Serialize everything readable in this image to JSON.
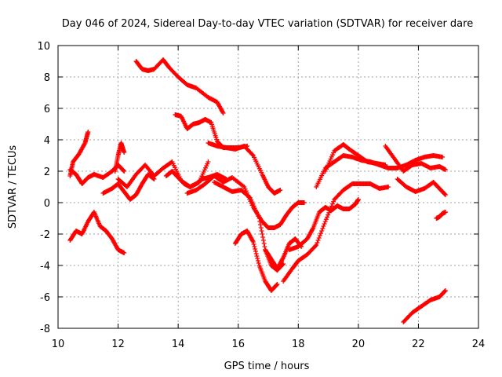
{
  "chart_data": {
    "type": "scatter",
    "title": "Day 046 of 2024, Sidereal Day-to-day VTEC variation (SDTVAR) for receiver dare",
    "xlabel": "GPS time / hours",
    "ylabel": "SDTVAR / TECUs",
    "xlim": [
      10,
      24
    ],
    "ylim": [
      -8,
      10
    ],
    "xticks": [
      10,
      12,
      14,
      16,
      18,
      20,
      22,
      24
    ],
    "yticks": [
      -8,
      -6,
      -4,
      -2,
      0,
      2,
      4,
      6,
      8,
      10
    ],
    "grid": true,
    "marker": "+",
    "color": "#ff0000",
    "series": [
      {
        "name": "track-1",
        "x": [
          10.4,
          10.5,
          10.7,
          10.9,
          11.0
        ],
        "y": [
          1.7,
          2.6,
          3.1,
          3.8,
          4.5
        ]
      },
      {
        "name": "track-2",
        "x": [
          10.4,
          10.6,
          10.8,
          11.0,
          11.2,
          11.5,
          11.8,
          12.0,
          12.2
        ],
        "y": [
          2.1,
          1.8,
          1.2,
          1.6,
          1.8,
          1.6,
          2.0,
          2.4,
          2.0
        ]
      },
      {
        "name": "track-3",
        "x": [
          10.4,
          10.6,
          10.8,
          11.0,
          11.2,
          11.4,
          11.6,
          11.8,
          12.0,
          12.2
        ],
        "y": [
          -2.4,
          -1.8,
          -2.0,
          -1.2,
          -0.6,
          -1.5,
          -1.8,
          -2.3,
          -3.0,
          -3.2
        ]
      },
      {
        "name": "track-4",
        "x": [
          11.5,
          11.8,
          12.0,
          12.2,
          12.4,
          12.6,
          12.8,
          13.0,
          13.2
        ],
        "y": [
          0.6,
          0.9,
          1.2,
          0.7,
          0.2,
          0.5,
          1.2,
          1.8,
          1.5
        ]
      },
      {
        "name": "track-5",
        "x": [
          11.9,
          12.0,
          12.1,
          12.2
        ],
        "y": [
          2.0,
          3.0,
          3.8,
          3.2
        ]
      },
      {
        "name": "track-6",
        "x": [
          12.0,
          12.3,
          12.6,
          12.9,
          13.2,
          13.5,
          13.8,
          14.1,
          14.4,
          14.7,
          15.0
        ],
        "y": [
          1.5,
          1.0,
          1.8,
          2.4,
          1.7,
          2.2,
          2.6,
          1.4,
          1.0,
          1.3,
          2.6
        ]
      },
      {
        "name": "track-7",
        "x": [
          12.6,
          12.8,
          13.0,
          13.2,
          13.5,
          13.7,
          14.0,
          14.3,
          14.6,
          15.0,
          15.3,
          15.5
        ],
        "y": [
          9.0,
          8.5,
          8.4,
          8.5,
          9.1,
          8.6,
          8.0,
          7.5,
          7.3,
          6.7,
          6.4,
          5.7
        ]
      },
      {
        "name": "track-8",
        "x": [
          13.6,
          13.8,
          14.0,
          14.2,
          14.4,
          14.6,
          14.8,
          15.0,
          15.3,
          15.6
        ],
        "y": [
          1.7,
          2.0,
          1.6,
          1.2,
          1.0,
          1.2,
          1.5,
          1.6,
          1.8,
          1.5
        ]
      },
      {
        "name": "track-9",
        "x": [
          13.9,
          14.1,
          14.3,
          14.5,
          14.7,
          14.9,
          15.1,
          15.3,
          15.5,
          15.7,
          16.0,
          16.3
        ],
        "y": [
          5.6,
          5.5,
          4.7,
          5.0,
          5.1,
          5.3,
          5.1,
          3.9,
          3.5,
          3.5,
          3.5,
          3.6
        ]
      },
      {
        "name": "track-10",
        "x": [
          14.3,
          14.6,
          14.9,
          15.2,
          15.5,
          15.8,
          16.2,
          16.5,
          16.8,
          17.0,
          17.2,
          17.4,
          17.6,
          17.8,
          18.0,
          18.2
        ],
        "y": [
          0.6,
          0.8,
          1.2,
          1.7,
          1.3,
          1.6,
          1.0,
          -0.3,
          -1.2,
          -1.6,
          -1.6,
          -1.4,
          -0.8,
          -0.3,
          0.0,
          0.0
        ]
      },
      {
        "name": "track-11",
        "x": [
          15.0,
          15.3,
          15.6,
          15.9,
          16.2,
          16.5,
          16.8,
          17.0,
          17.2,
          17.4
        ],
        "y": [
          3.8,
          3.6,
          3.5,
          3.4,
          3.6,
          3.0,
          1.8,
          1.0,
          0.6,
          0.8
        ]
      },
      {
        "name": "track-12",
        "x": [
          15.2,
          15.5,
          15.8,
          16.1,
          16.4,
          16.7,
          16.9,
          17.1,
          17.3,
          17.5
        ],
        "y": [
          1.3,
          1.0,
          0.7,
          0.8,
          0.3,
          -1.0,
          -3.0,
          -4.0,
          -4.3,
          -3.9
        ]
      },
      {
        "name": "track-13",
        "x": [
          15.9,
          16.1,
          16.3,
          16.5,
          16.7,
          16.9,
          17.1,
          17.3
        ],
        "y": [
          -2.6,
          -2.0,
          -1.8,
          -2.5,
          -4.0,
          -5.0,
          -5.6,
          -5.2
        ]
      },
      {
        "name": "track-14",
        "x": [
          16.9,
          17.1,
          17.3,
          17.5,
          17.7,
          17.9,
          18.1
        ],
        "y": [
          -3.0,
          -3.6,
          -4.2,
          -3.5,
          -2.6,
          -2.3,
          -2.8
        ]
      },
      {
        "name": "track-15",
        "x": [
          17.5,
          17.8,
          18.0,
          18.3,
          18.6,
          18.9,
          19.2,
          19.5,
          19.8,
          20.1,
          20.4,
          20.7,
          21.0
        ],
        "y": [
          -5.0,
          -4.2,
          -3.7,
          -3.3,
          -2.7,
          -1.2,
          0.2,
          0.8,
          1.2,
          1.2,
          1.2,
          0.9,
          1.0
        ]
      },
      {
        "name": "track-16",
        "x": [
          17.7,
          18.0,
          18.3,
          18.5,
          18.7,
          18.9,
          19.1,
          19.3,
          19.5,
          19.7,
          19.9,
          20.0
        ],
        "y": [
          -3.0,
          -2.8,
          -2.3,
          -1.6,
          -0.6,
          -0.3,
          -0.5,
          -0.2,
          -0.4,
          -0.4,
          -0.1,
          0.2
        ]
      },
      {
        "name": "track-17",
        "x": [
          18.6,
          18.9,
          19.2,
          19.5,
          19.8,
          20.1,
          20.4,
          20.7,
          21.0,
          21.3,
          21.6,
          21.9,
          22.2,
          22.5,
          22.8
        ],
        "y": [
          1.0,
          2.2,
          2.6,
          3.0,
          2.9,
          2.7,
          2.6,
          2.4,
          2.2,
          2.2,
          2.4,
          2.7,
          2.9,
          3.0,
          2.9
        ]
      },
      {
        "name": "track-18",
        "x": [
          18.9,
          19.2,
          19.5,
          19.7,
          20.0,
          20.3,
          20.6,
          20.9
        ],
        "y": [
          2.0,
          3.3,
          3.7,
          3.4,
          3.0,
          2.6,
          2.5,
          2.4
        ]
      },
      {
        "name": "track-19",
        "x": [
          20.9,
          21.2,
          21.5,
          21.8,
          22.1,
          22.4,
          22.7,
          22.9
        ],
        "y": [
          3.6,
          2.8,
          2.0,
          2.4,
          2.5,
          2.2,
          2.3,
          2.1
        ]
      },
      {
        "name": "track-20",
        "x": [
          21.3,
          21.6,
          21.9,
          22.2,
          22.5,
          22.7,
          22.9
        ],
        "y": [
          1.5,
          1.0,
          0.7,
          0.9,
          1.3,
          0.9,
          0.5
        ]
      },
      {
        "name": "track-21",
        "x": [
          22.6,
          22.7,
          22.8,
          22.9
        ],
        "y": [
          -1.0,
          -0.9,
          -0.7,
          -0.6
        ]
      },
      {
        "name": "track-22",
        "x": [
          21.5,
          21.8,
          22.1,
          22.4,
          22.7,
          22.9
        ],
        "y": [
          -7.6,
          -7.0,
          -6.6,
          -6.2,
          -6.0,
          -5.6
        ]
      }
    ]
  }
}
